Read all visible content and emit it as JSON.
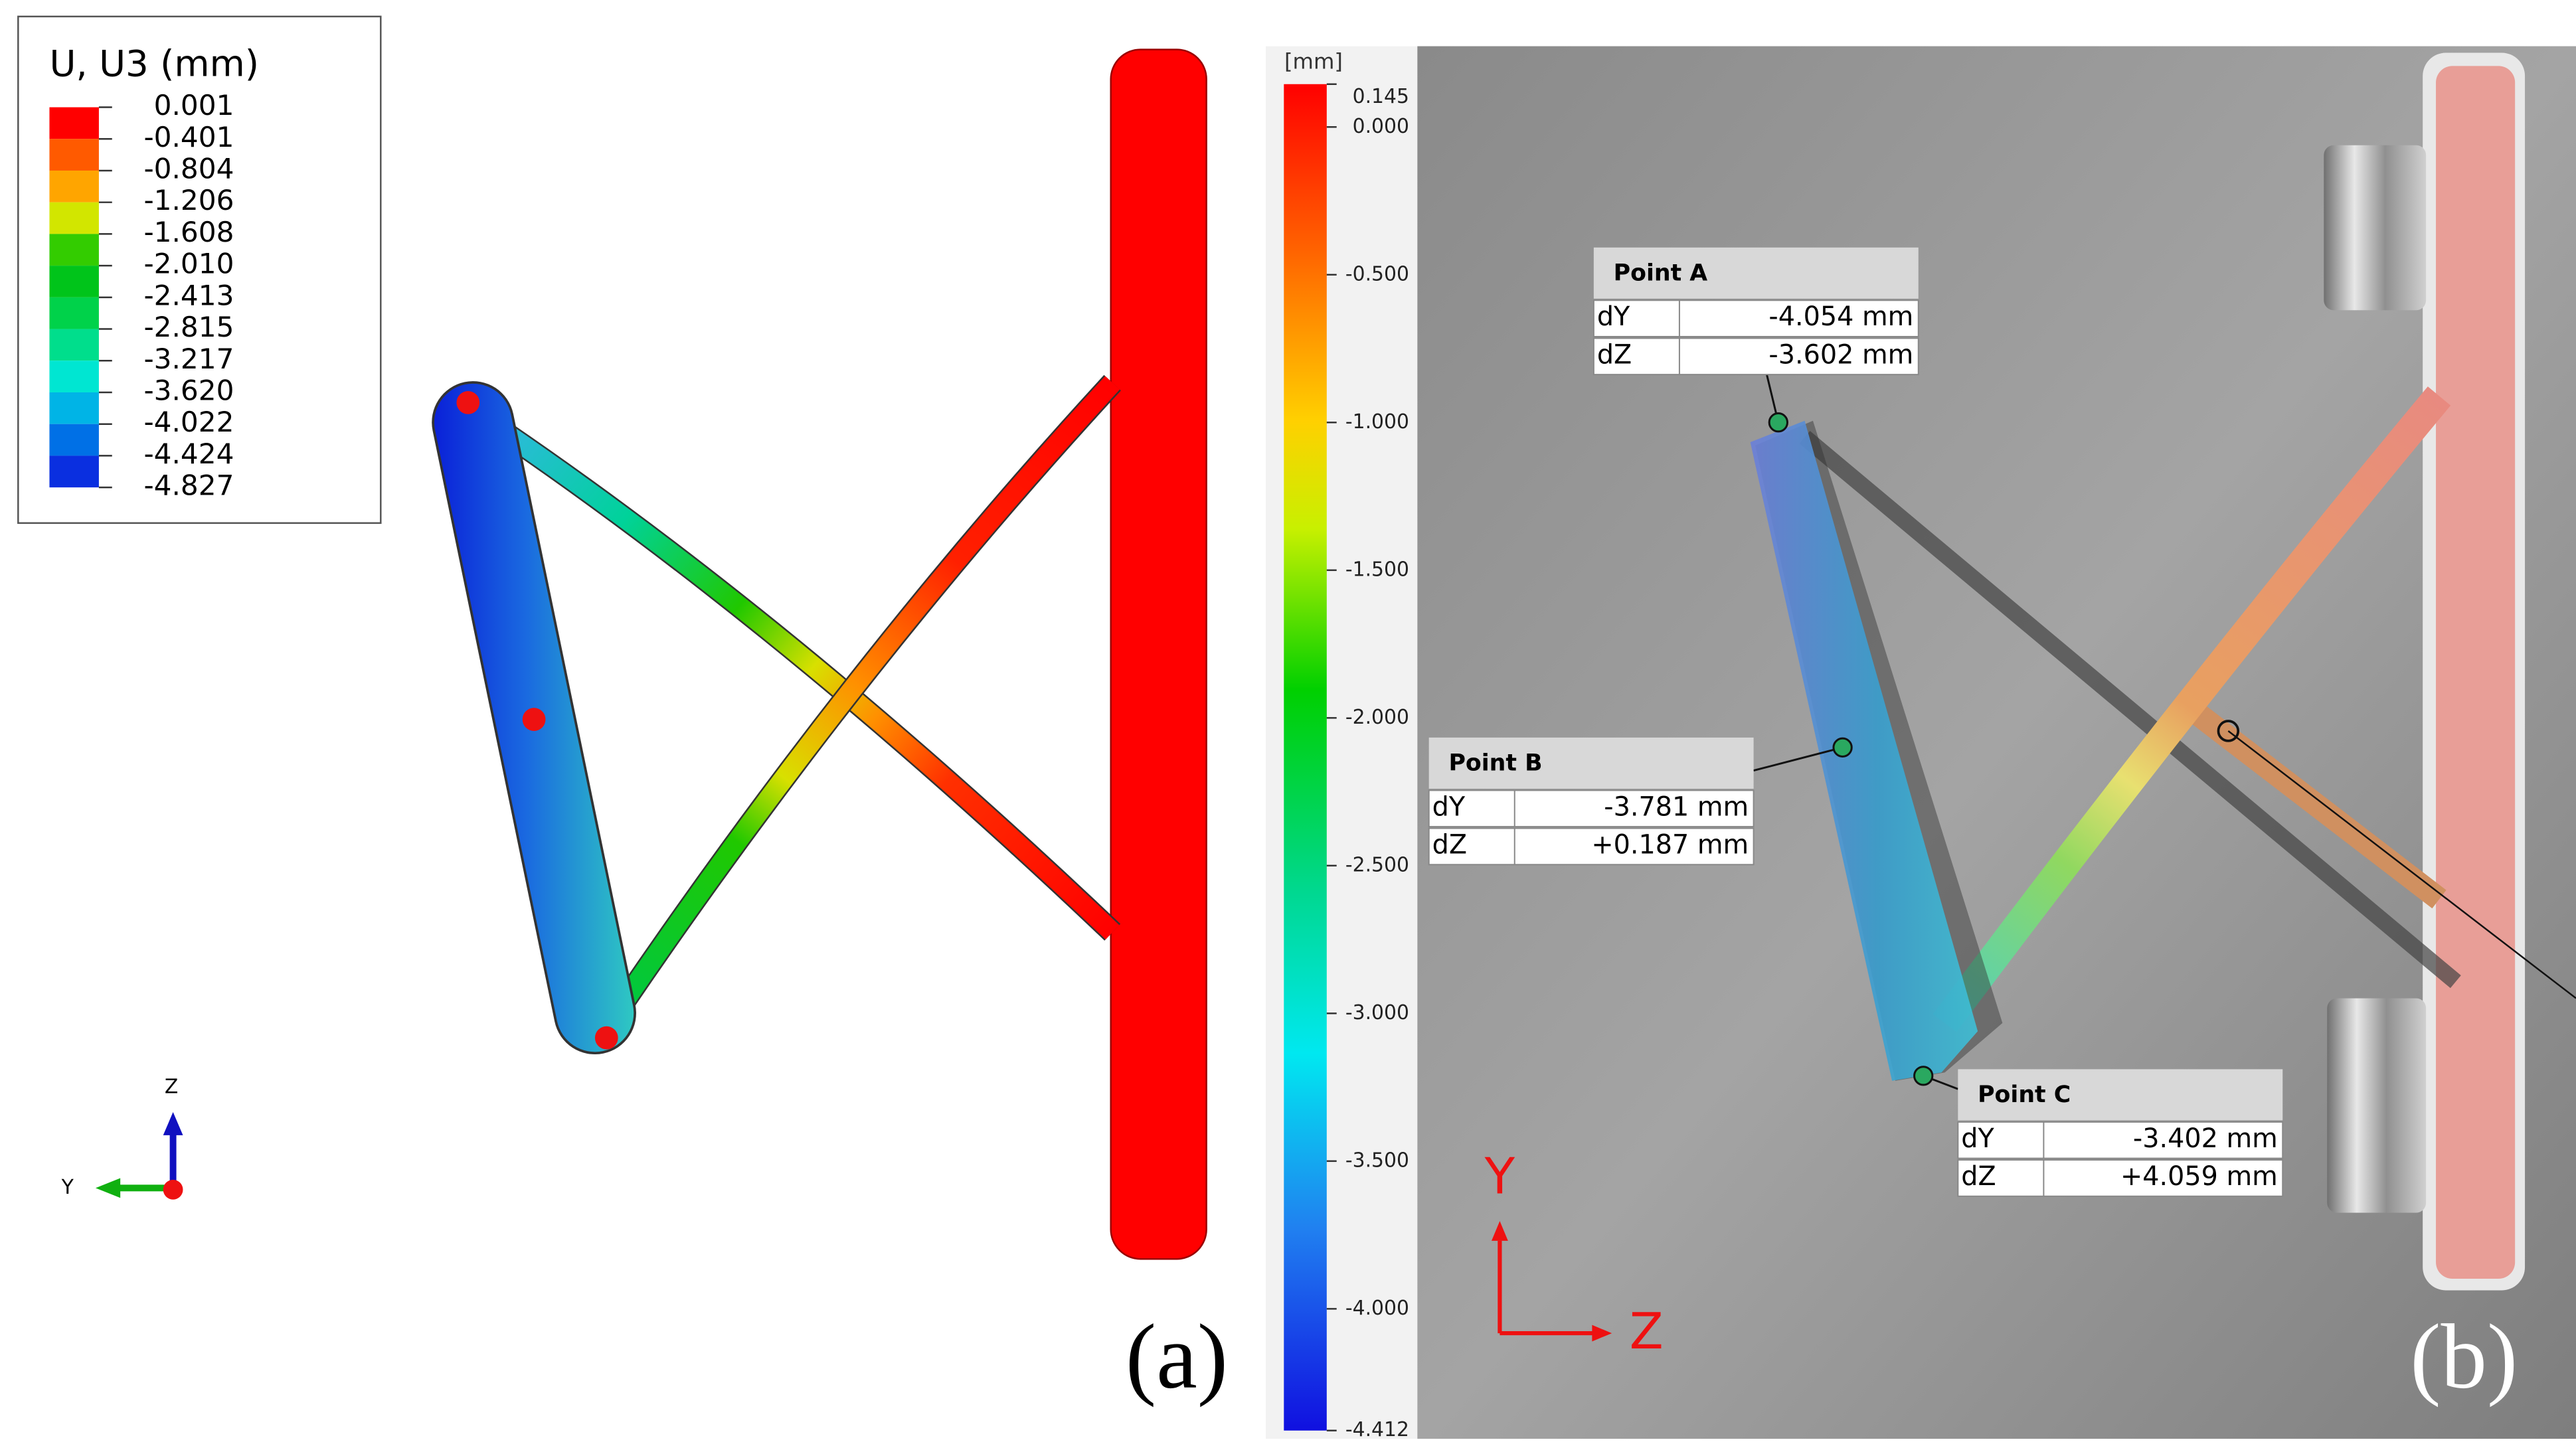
{
  "panel_a": {
    "legend": {
      "title": "U, U3 (mm)",
      "values": [
        "0.001",
        "-0.401",
        "-0.804",
        "-1.206",
        "-1.608",
        "-2.010",
        "-2.413",
        "-2.815",
        "-3.217",
        "-3.620",
        "-4.022",
        "-4.424",
        "-4.827"
      ],
      "colors": [
        "#ff0000",
        "#ff5a00",
        "#ffa500",
        "#d2e600",
        "#33cc00",
        "#00c41a",
        "#00d24a",
        "#00de8c",
        "#00e6d2",
        "#00b4e6",
        "#0070e6",
        "#0a2fe0"
      ]
    },
    "axes": {
      "vertical": "Z",
      "horizontal": "Y"
    },
    "label": "(a)"
  },
  "panel_b": {
    "colorbar": {
      "unit": "[mm]",
      "range": [
        -4.412,
        0.145
      ],
      "ticks": [
        0.145,
        {
          "value": 0,
          "label": "0.000"
        },
        {
          "value": -0.5,
          "label": "-0.500"
        },
        {
          "value": -1,
          "label": "-1.000"
        },
        {
          "value": -1.5,
          "label": "-1.500"
        },
        {
          "value": -2,
          "label": "-2.000"
        },
        {
          "value": -2.5,
          "label": "-2.500"
        },
        {
          "value": -3,
          "label": "-3.000"
        },
        {
          "value": -3.5,
          "label": "-3.500"
        },
        {
          "value": -4,
          "label": "-4.000"
        },
        -4.412
      ]
    },
    "points": [
      {
        "name": "Point A",
        "rows": [
          [
            "dY",
            "-4.054 mm"
          ],
          [
            "dZ",
            "-3.602 mm"
          ]
        ]
      },
      {
        "name": "Point B",
        "rows": [
          [
            "dY",
            "-3.781 mm"
          ],
          [
            "dZ",
            "+0.187 mm"
          ]
        ]
      },
      {
        "name": "Point C",
        "rows": [
          [
            "dY",
            "-3.402 mm"
          ],
          [
            "dZ",
            "+4.059 mm"
          ]
        ]
      }
    ],
    "axes": {
      "vertical": "Y",
      "horizontal": "Z"
    },
    "label": "(b)"
  }
}
